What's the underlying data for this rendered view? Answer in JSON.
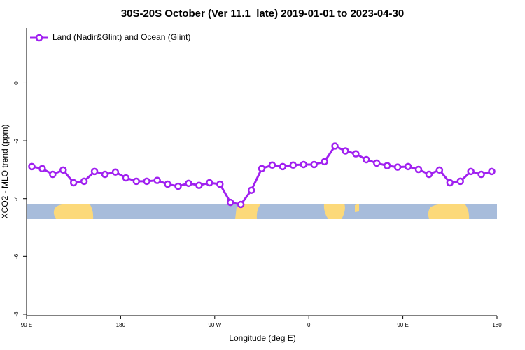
{
  "chart_data": {
    "type": "line",
    "title": "30S-20S October (Ver 11.1_late)   2019-01-01 to 2023-04-30",
    "x_label": "Longitude (deg E)",
    "y_label": "XCO2 - MLO trend (ppm)",
    "x": [
      95,
      105,
      115,
      125,
      135,
      145,
      155,
      165,
      175,
      185,
      195,
      205,
      215,
      225,
      235,
      245,
      255,
      265,
      275,
      285,
      295,
      305,
      315,
      325,
      335,
      345,
      355,
      365,
      375,
      385,
      395,
      405,
      415,
      425,
      435,
      445,
      455,
      465,
      475,
      485,
      495,
      505,
      515,
      525,
      535
    ],
    "series": [
      {
        "name": "Land (Nadir&Glint) and Ocean (Glint)",
        "color": "#a020f0",
        "values": [
          -2.89,
          -2.96,
          -3.16,
          -3.01,
          -3.45,
          -3.4,
          -3.06,
          -3.16,
          -3.08,
          -3.28,
          -3.4,
          -3.4,
          -3.37,
          -3.5,
          -3.57,
          -3.47,
          -3.54,
          -3.45,
          -3.5,
          -4.13,
          -4.2,
          -3.71,
          -2.96,
          -2.84,
          -2.89,
          -2.84,
          -2.82,
          -2.82,
          -2.72,
          -2.18,
          -2.35,
          -2.45,
          -2.65,
          -2.77,
          -2.86,
          -2.91,
          -2.89,
          -2.99,
          -3.16,
          -3.01,
          -3.45,
          -3.4,
          -3.06,
          -3.16,
          -3.06
        ]
      }
    ],
    "xlim": [
      90,
      540
    ],
    "xticks": [
      {
        "value": 90,
        "label": "90 E"
      },
      {
        "value": 180,
        "label": "180"
      },
      {
        "value": 270,
        "label": "90 W"
      },
      {
        "value": 360,
        "label": "0"
      },
      {
        "value": 450,
        "label": "90 E"
      },
      {
        "value": 540,
        "label": "180"
      }
    ],
    "ylim": [
      -8.05,
      1.9
    ],
    "yticks": [
      0,
      -2,
      -4,
      -6,
      -8
    ],
    "legend": "top-left"
  }
}
